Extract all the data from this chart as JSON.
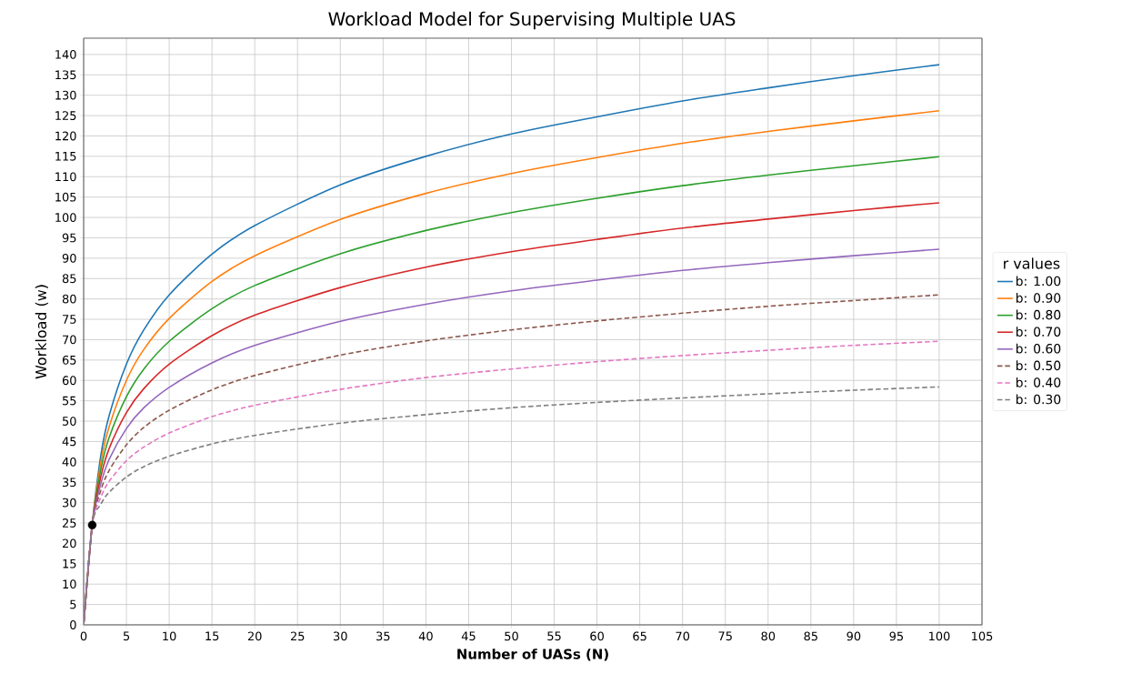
{
  "chart_data": {
    "type": "line",
    "title": "Workload Model for Supervising Multiple UAS",
    "xlabel": "Number of UASs (N)",
    "ylabel": "Workload (w)",
    "legend_title": "r values",
    "legend": "right",
    "grid": true,
    "x": [
      0,
      1,
      2,
      3,
      5,
      7,
      10,
      15,
      20,
      30,
      40,
      50,
      60,
      70,
      80,
      90,
      100
    ],
    "xlim": [
      0,
      105
    ],
    "xticks": [
      0,
      5,
      10,
      15,
      20,
      25,
      30,
      35,
      40,
      45,
      50,
      55,
      60,
      65,
      70,
      75,
      80,
      85,
      90,
      95,
      100,
      105
    ],
    "ylim": [
      0,
      144
    ],
    "yticks": [
      0,
      5,
      10,
      15,
      20,
      25,
      30,
      35,
      40,
      45,
      50,
      55,
      60,
      65,
      70,
      75,
      80,
      85,
      90,
      95,
      100,
      105,
      110,
      115,
      120,
      125,
      130,
      135,
      140
    ],
    "series": [
      {
        "name": "b: 1.00",
        "color": "#1f77b4",
        "line_style": "solid",
        "values": [
          0,
          24.5,
          41.5,
          51.5,
          64,
          72.3,
          81,
          91,
          98,
          108,
          115,
          120.5,
          124.7,
          128.6,
          131.8,
          134.8,
          137.5
        ]
      },
      {
        "name": "b: 0.90",
        "color": "#ff7f0e",
        "line_style": "solid",
        "values": [
          0,
          24.5,
          39.8,
          48.8,
          60,
          67.5,
          75.2,
          84.3,
          90.6,
          99.5,
          105.9,
          110.8,
          114.7,
          118.2,
          121.1,
          123.7,
          126.2
        ]
      },
      {
        "name": "b: 0.80",
        "color": "#2ca02c",
        "line_style": "solid",
        "values": [
          0,
          24.5,
          38.1,
          46.1,
          56,
          62.7,
          69.6,
          77.6,
          83.3,
          91.1,
          96.8,
          101.2,
          104.7,
          107.8,
          110.4,
          112.7,
          114.9
        ]
      },
      {
        "name": "b: 0.70",
        "color": "#d62728",
        "line_style": "solid",
        "values": [
          0,
          24.5,
          36.3,
          43.4,
          52.1,
          57.9,
          64,
          71,
          76,
          82.8,
          87.8,
          91.6,
          94.6,
          97.4,
          99.6,
          101.7,
          103.6
        ]
      },
      {
        "name": "b: 0.60",
        "color": "#9467bd",
        "line_style": "solid",
        "values": [
          0,
          24.5,
          34.6,
          40.7,
          48.2,
          53.2,
          58.3,
          64.3,
          68.6,
          74.5,
          78.7,
          82,
          84.6,
          87,
          88.9,
          90.6,
          92.2
        ]
      },
      {
        "name": "b: 0.50",
        "color": "#8c564b",
        "line_style": "dashed",
        "values": [
          0,
          24.5,
          33,
          38,
          44.2,
          48.4,
          52.7,
          57.7,
          61.2,
          66.2,
          69.7,
          72.4,
          74.6,
          76.5,
          78.2,
          79.6,
          81
        ]
      },
      {
        "name": "b: 0.40",
        "color": "#e377c2",
        "line_style": "dashed",
        "values": [
          0,
          24.5,
          31.3,
          35.3,
          40.3,
          43.6,
          47.1,
          51.1,
          53.9,
          57.8,
          60.7,
          62.8,
          64.6,
          66.1,
          67.4,
          68.6,
          69.6
        ]
      },
      {
        "name": "b: 0.30",
        "color": "#7f7f7f",
        "line_style": "dashed",
        "values": [
          0,
          24.5,
          29.6,
          32.6,
          36.3,
          38.8,
          41.4,
          44.4,
          46.5,
          49.5,
          51.6,
          53.3,
          54.6,
          55.7,
          56.7,
          57.6,
          58.4
        ]
      },
      {
        "type": "scatter",
        "marker": "circle",
        "color": "#000000",
        "x": [
          1
        ],
        "values": [
          24.5
        ]
      }
    ]
  }
}
